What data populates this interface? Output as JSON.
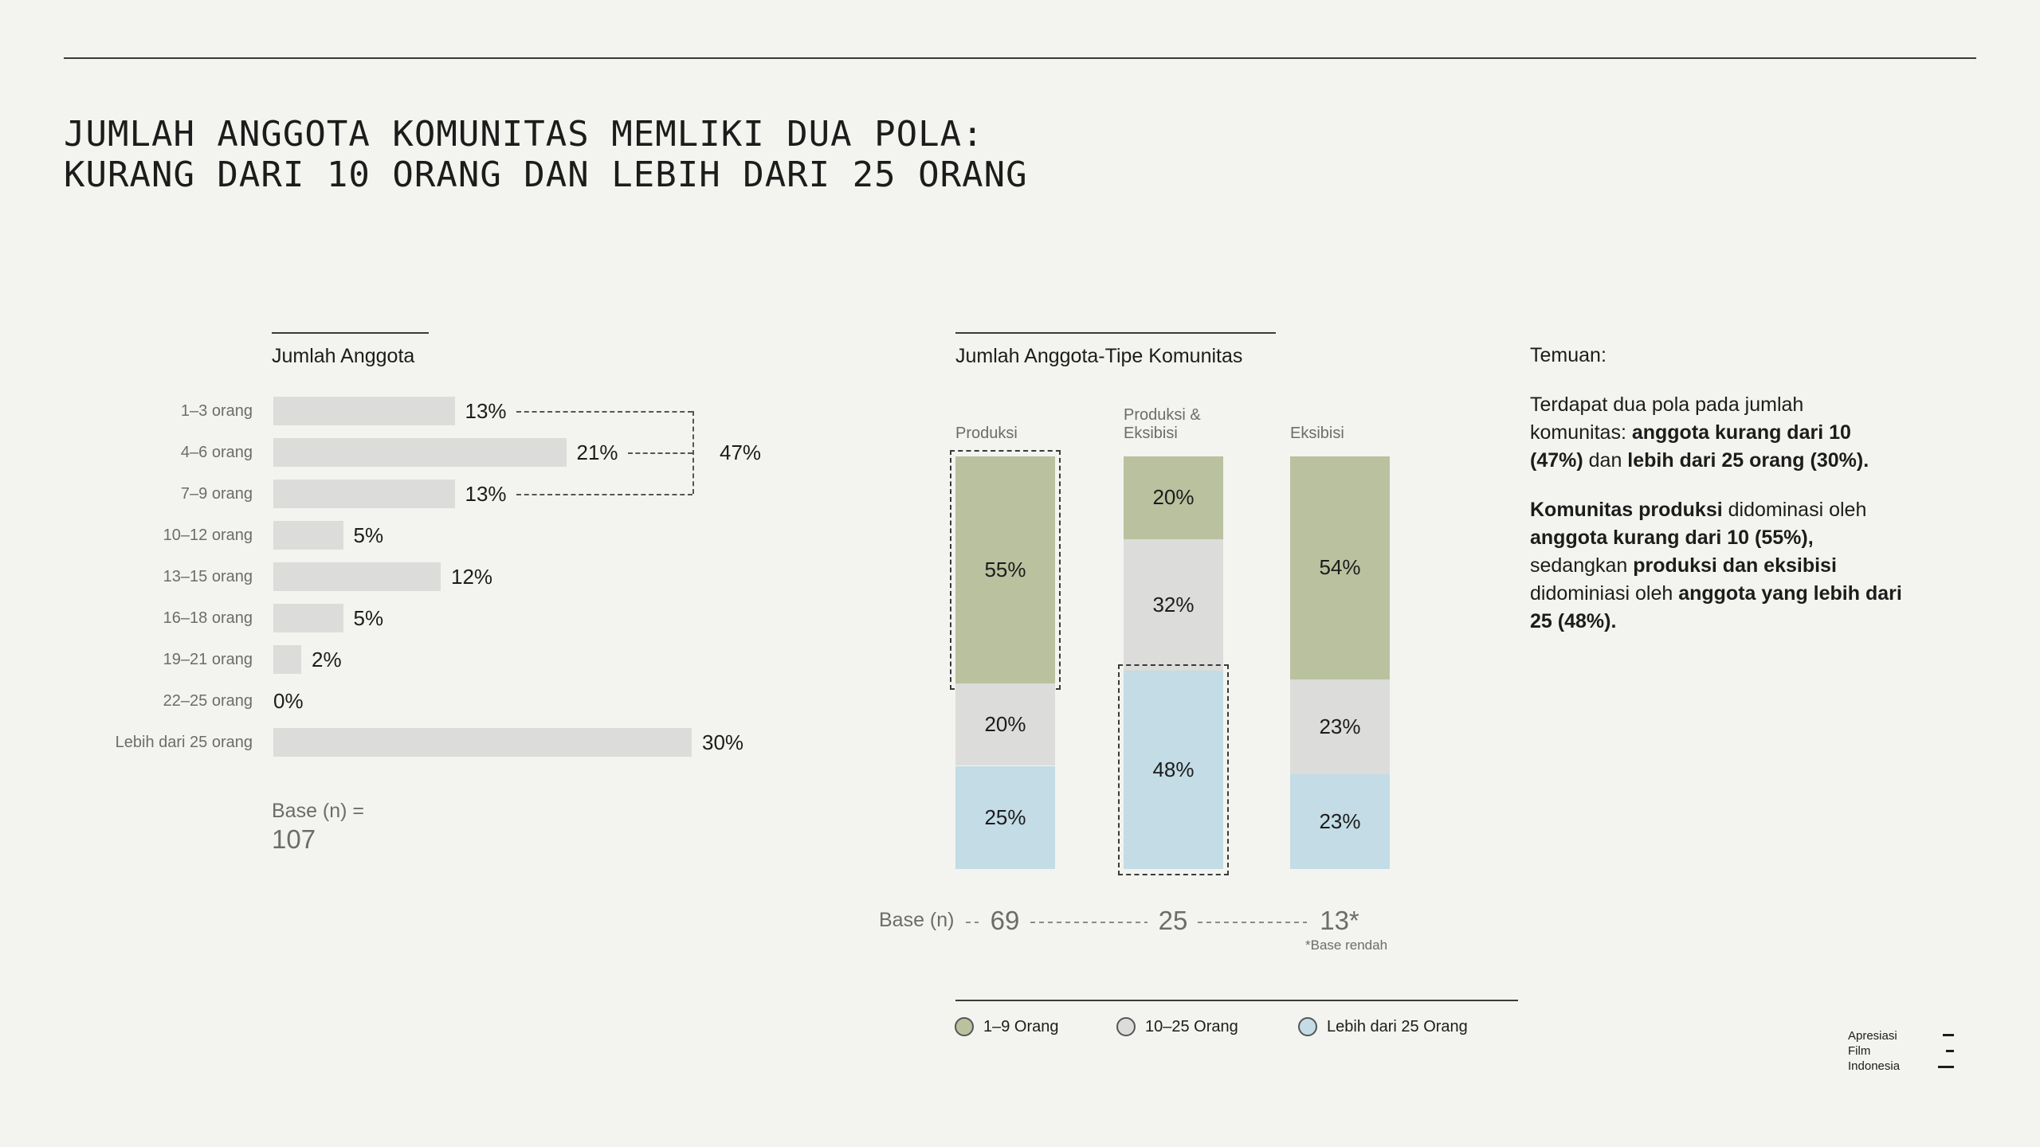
{
  "title": {
    "line1": "JUMLAH ANGGOTA KOMUNITAS MEMLIKI DUA POLA:",
    "line2": "KURANG DARI 10 ORANG DAN LEBIH DARI 25 ORANG"
  },
  "chart_data": [
    {
      "type": "bar",
      "orientation": "horizontal",
      "title": "Jumlah Anggota",
      "categories": [
        "1–3 orang",
        "4–6 orang",
        "7–9 orang",
        "10–12 orang",
        "13–15 orang",
        "16–18 orang",
        "19–21 orang",
        "22–25 orang",
        "Lebih dari 25 orang"
      ],
      "values": [
        13,
        21,
        13,
        5,
        12,
        5,
        2,
        0,
        30
      ],
      "value_labels": [
        "13%",
        "21%",
        "13%",
        "5%",
        "12%",
        "5%",
        "2%",
        "0%",
        "30%"
      ],
      "unit": "%",
      "bracket_total": {
        "label": "47%",
        "covers": [
          "1–3 orang",
          "4–6 orang",
          "7–9 orang"
        ]
      },
      "base_label": "Base (n) =",
      "base_value": "107"
    },
    {
      "type": "bar",
      "stacked": true,
      "title": "Jumlah Anggota-Tipe Komunitas",
      "categories": [
        "Produksi",
        "Produksi & Eksibisi",
        "Eksibisi"
      ],
      "series": [
        {
          "name": "1–9 Orang",
          "color": "#bac19f",
          "values": [
            55,
            20,
            54
          ]
        },
        {
          "name": "10–25 Orang",
          "color": "#dcdcda",
          "values": [
            20,
            32,
            23
          ]
        },
        {
          "name": "Lebih dari 25 Orang",
          "color": "#c3dce6",
          "values": [
            25,
            48,
            23
          ]
        }
      ],
      "unit": "%",
      "highlighted": [
        {
          "category": "Produksi",
          "series": "1–9 Orang"
        },
        {
          "category": "Produksi & Eksibisi",
          "series": "Lebih dari 25 Orang"
        }
      ],
      "base_label": "Base (n)",
      "bases": [
        "69",
        "25",
        "13*"
      ],
      "base_note": "*Base rendah"
    }
  ],
  "findings": {
    "title": "Temuan:",
    "p1": [
      {
        "text": "Terdapat dua pola pada jumlah komunitas: ",
        "bold": false
      },
      {
        "text": "anggota kurang dari 10 (47%)",
        "bold": true
      },
      {
        "text": " dan ",
        "bold": false
      },
      {
        "text": "lebih dari 25 orang (30%).",
        "bold": true
      }
    ],
    "p2": [
      {
        "text": "Komunitas produksi",
        "bold": true
      },
      {
        "text": " didominasi oleh ",
        "bold": false
      },
      {
        "text": "anggota kurang dari 10 (55%),",
        "bold": true
      },
      {
        "text": " sedangkan ",
        "bold": false
      },
      {
        "text": "produksi dan eksibisi",
        "bold": true
      },
      {
        "text": " didominiasi oleh ",
        "bold": false
      },
      {
        "text": "anggota yang lebih dari 25 (48%).",
        "bold": true
      }
    ]
  },
  "brand": {
    "line1": "Apresiasi",
    "line2": "Film",
    "line3": "Indonesia",
    "icon": "menu-lines-icon"
  }
}
